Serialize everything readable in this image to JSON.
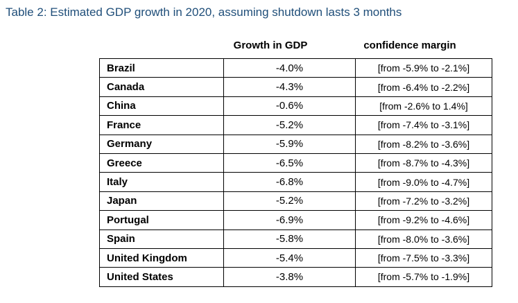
{
  "title": "Table 2: Estimated GDP growth in 2020, assuming shutdown lasts 3 months",
  "headers": {
    "country": "",
    "growth": "Growth in GDP",
    "margin": "confidence margin"
  },
  "chart_data": {
    "type": "table",
    "title": "Table 2: Estimated GDP growth in 2020, assuming shutdown lasts 3 months",
    "columns": [
      "",
      "Growth in GDP",
      "confidence margin"
    ],
    "rows": [
      {
        "country": "Brazil",
        "growth": "-4.0%",
        "margin": "[from -5.9% to -2.1%]"
      },
      {
        "country": "Canada",
        "growth": "-4.3%",
        "margin": "[from -6.4% to -2.2%]"
      },
      {
        "country": "China",
        "growth": "-0.6%",
        "margin": "[from -2.6% to 1.4%]"
      },
      {
        "country": "France",
        "growth": "-5.2%",
        "margin": "[from -7.4% to -3.1%]"
      },
      {
        "country": "Germany",
        "growth": "-5.9%",
        "margin": "[from -8.2% to -3.6%]"
      },
      {
        "country": "Greece",
        "growth": "-6.5%",
        "margin": "[from -8.7% to -4.3%]"
      },
      {
        "country": "Italy",
        "growth": "-6.8%",
        "margin": "[from -9.0% to -4.7%]"
      },
      {
        "country": "Japan",
        "growth": "-5.2%",
        "margin": "[from -7.2% to -3.2%]"
      },
      {
        "country": "Portugal",
        "growth": "-6.9%",
        "margin": "[from -9.2% to -4.6%]"
      },
      {
        "country": "Spain",
        "growth": "-5.8%",
        "margin": "[from -8.0% to -3.6%]"
      },
      {
        "country": "United Kingdom",
        "growth": "-5.4%",
        "margin": "[from -7.5% to -3.3%]"
      },
      {
        "country": "United States",
        "growth": "-3.8%",
        "margin": "[from -5.7% to -1.9%]"
      }
    ]
  },
  "colors": {
    "title": "#1f4e79",
    "text": "#000000",
    "border": "#000000"
  }
}
